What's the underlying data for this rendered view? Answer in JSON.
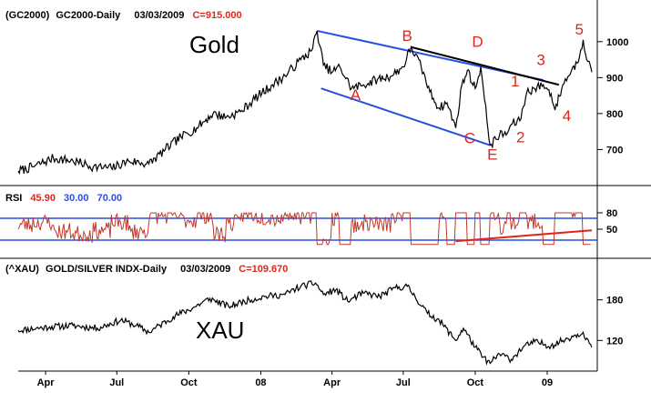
{
  "chart_data": [
    {
      "type": "line",
      "panel": "gold",
      "header": {
        "symbol": "(GC2000)",
        "name": "GC2000-Daily",
        "date": "03/03/2009",
        "close": "C=915.000"
      },
      "label": "Gold",
      "y_ticks": [
        "1000",
        "900",
        "800",
        "700"
      ],
      "ylim": [
        620,
        1040
      ],
      "x_range": [
        "2007-03-01",
        "2009-03-03"
      ],
      "series": [
        {
          "values": [
            [
              "2007-03-01",
              640
            ],
            [
              "2007-03-20",
              652
            ],
            [
              "2007-04-15",
              676
            ],
            [
              "2007-05-10",
              668
            ],
            [
              "2007-06-05",
              652
            ],
            [
              "2007-06-28",
              648
            ],
            [
              "2007-07-20",
              668
            ],
            [
              "2007-08-15",
              660
            ],
            [
              "2007-09-05",
              700
            ],
            [
              "2007-09-25",
              735
            ],
            [
              "2007-10-15",
              760
            ],
            [
              "2007-11-05",
              800
            ],
            [
              "2007-11-22",
              790
            ],
            [
              "2007-12-10",
              805
            ],
            [
              "2008-01-02",
              850
            ],
            [
              "2008-01-20",
              880
            ],
            [
              "2008-02-05",
              905
            ],
            [
              "2008-02-25",
              950
            ],
            [
              "2008-03-10",
              975
            ],
            [
              "2008-03-17",
              1030
            ],
            [
              "2008-03-25",
              935
            ],
            [
              "2008-04-05",
              915
            ],
            [
              "2008-04-15",
              930
            ],
            [
              "2008-04-30",
              870
            ],
            [
              "2008-05-15",
              880
            ],
            [
              "2008-06-02",
              895
            ],
            [
              "2008-06-20",
              905
            ],
            [
              "2008-07-05",
              930
            ],
            [
              "2008-07-15",
              985
            ],
            [
              "2008-07-28",
              930
            ],
            [
              "2008-08-08",
              860
            ],
            [
              "2008-08-20",
              815
            ],
            [
              "2008-08-30",
              830
            ],
            [
              "2008-09-10",
              760
            ],
            [
              "2008-09-18",
              880
            ],
            [
              "2008-09-25",
              920
            ],
            [
              "2008-10-05",
              870
            ],
            [
              "2008-10-12",
              930
            ],
            [
              "2008-10-20",
              780
            ],
            [
              "2008-10-24",
              712
            ],
            [
              "2008-11-05",
              740
            ],
            [
              "2008-11-15",
              745
            ],
            [
              "2008-11-20",
              770
            ],
            [
              "2008-12-01",
              780
            ],
            [
              "2008-12-10",
              860
            ],
            [
              "2008-12-20",
              870
            ],
            [
              "2008-12-31",
              880
            ],
            [
              "2009-01-10",
              855
            ],
            [
              "2009-01-15",
              810
            ],
            [
              "2009-01-25",
              880
            ],
            [
              "2009-02-05",
              920
            ],
            [
              "2009-02-12",
              940
            ],
            [
              "2009-02-20",
              1005
            ],
            [
              "2009-02-26",
              945
            ],
            [
              "2009-03-03",
              915
            ]
          ]
        }
      ],
      "trendlines": [
        {
          "color": "#2a4fe0",
          "from": [
            "2008-03-17",
            1030
          ],
          "to": [
            "2008-12-31",
            893
          ]
        },
        {
          "color": "#000000",
          "from": [
            "2008-07-15",
            985
          ],
          "to": [
            "2009-01-20",
            880
          ]
        },
        {
          "color": "#2a4fe0",
          "from": [
            "2008-03-22",
            870
          ],
          "to": [
            "2008-10-24",
            712
          ]
        }
      ],
      "wave_labels": [
        {
          "text": "B",
          "x": "2008-07-10",
          "y": 1002
        },
        {
          "text": "D",
          "x": "2008-10-08",
          "y": 985
        },
        {
          "text": "5",
          "x": "2009-02-15",
          "y": 1020
        },
        {
          "text": "3",
          "x": "2008-12-28",
          "y": 935
        },
        {
          "text": "1",
          "x": "2008-11-25",
          "y": 875
        },
        {
          "text": "A",
          "x": "2008-05-05",
          "y": 838
        },
        {
          "text": "4",
          "x": "2009-01-30",
          "y": 780
        },
        {
          "text": "2",
          "x": "2008-12-02",
          "y": 720
        },
        {
          "text": "C",
          "x": "2008-09-28",
          "y": 718
        },
        {
          "text": "E",
          "x": "2008-10-27",
          "y": 672
        }
      ]
    },
    {
      "type": "line",
      "panel": "rsi",
      "header": {
        "name": "RSI",
        "value": "45.90",
        "lower": "30.00",
        "upper": "70.00"
      },
      "y_ticks": [
        "80",
        "50"
      ],
      "ylim": [
        0,
        100
      ],
      "levels": [
        30,
        70
      ],
      "trendline": {
        "color": "#e0261a",
        "from": [
          "2008-09-10",
          28
        ],
        "to": [
          "2009-03-03",
          48
        ]
      }
    },
    {
      "type": "line",
      "panel": "xau",
      "header": {
        "symbol": "(^XAU)",
        "name": "GOLD/SILVER INDX-Daily",
        "date": "03/03/2009",
        "close": "C=109.670"
      },
      "label": "XAU",
      "y_ticks": [
        "180",
        "120"
      ],
      "ylim": [
        80,
        220
      ],
      "x_range": [
        "2007-03-01",
        "2009-03-03"
      ],
      "series": [
        {
          "values": [
            [
              "2007-03-01",
              135
            ],
            [
              "2007-04-10",
              140
            ],
            [
              "2007-05-10",
              142
            ],
            [
              "2007-06-10",
              138
            ],
            [
              "2007-07-10",
              150
            ],
            [
              "2007-07-30",
              142
            ],
            [
              "2007-08-15",
              132
            ],
            [
              "2007-09-15",
              155
            ],
            [
              "2007-10-10",
              168
            ],
            [
              "2007-11-01",
              182
            ],
            [
              "2007-11-25",
              170
            ],
            [
              "2007-12-15",
              178
            ],
            [
              "2008-01-10",
              185
            ],
            [
              "2008-02-05",
              188
            ],
            [
              "2008-02-25",
              200
            ],
            [
              "2008-03-15",
              205
            ],
            [
              "2008-03-25",
              188
            ],
            [
              "2008-04-10",
              195
            ],
            [
              "2008-04-25",
              178
            ],
            [
              "2008-05-15",
              190
            ],
            [
              "2008-06-05",
              185
            ],
            [
              "2008-06-25",
              198
            ],
            [
              "2008-07-10",
              200
            ],
            [
              "2008-07-20",
              185
            ],
            [
              "2008-08-05",
              160
            ],
            [
              "2008-08-20",
              150
            ],
            [
              "2008-09-10",
              120
            ],
            [
              "2008-09-20",
              138
            ],
            [
              "2008-10-05",
              110
            ],
            [
              "2008-10-15",
              95
            ],
            [
              "2008-10-24",
              86
            ],
            [
              "2008-11-05",
              100
            ],
            [
              "2008-11-20",
              92
            ],
            [
              "2008-12-05",
              110
            ],
            [
              "2008-12-20",
              118
            ],
            [
              "2009-01-10",
              112
            ],
            [
              "2009-01-25",
              120
            ],
            [
              "2009-02-10",
              128
            ],
            [
              "2009-02-20",
              132
            ],
            [
              "2009-03-03",
              110
            ]
          ]
        }
      ]
    }
  ],
  "x_axis_labels": [
    {
      "text": "Apr",
      "date": "2007-04-05"
    },
    {
      "text": "Jul",
      "date": "2007-07-05"
    },
    {
      "text": "Oct",
      "date": "2007-10-05"
    },
    {
      "text": "08",
      "date": "2008-01-05"
    },
    {
      "text": "Apr",
      "date": "2008-04-05"
    },
    {
      "text": "Jul",
      "date": "2008-07-05"
    },
    {
      "text": "Oct",
      "date": "2008-10-05"
    },
    {
      "text": "09",
      "date": "2009-01-05"
    }
  ]
}
